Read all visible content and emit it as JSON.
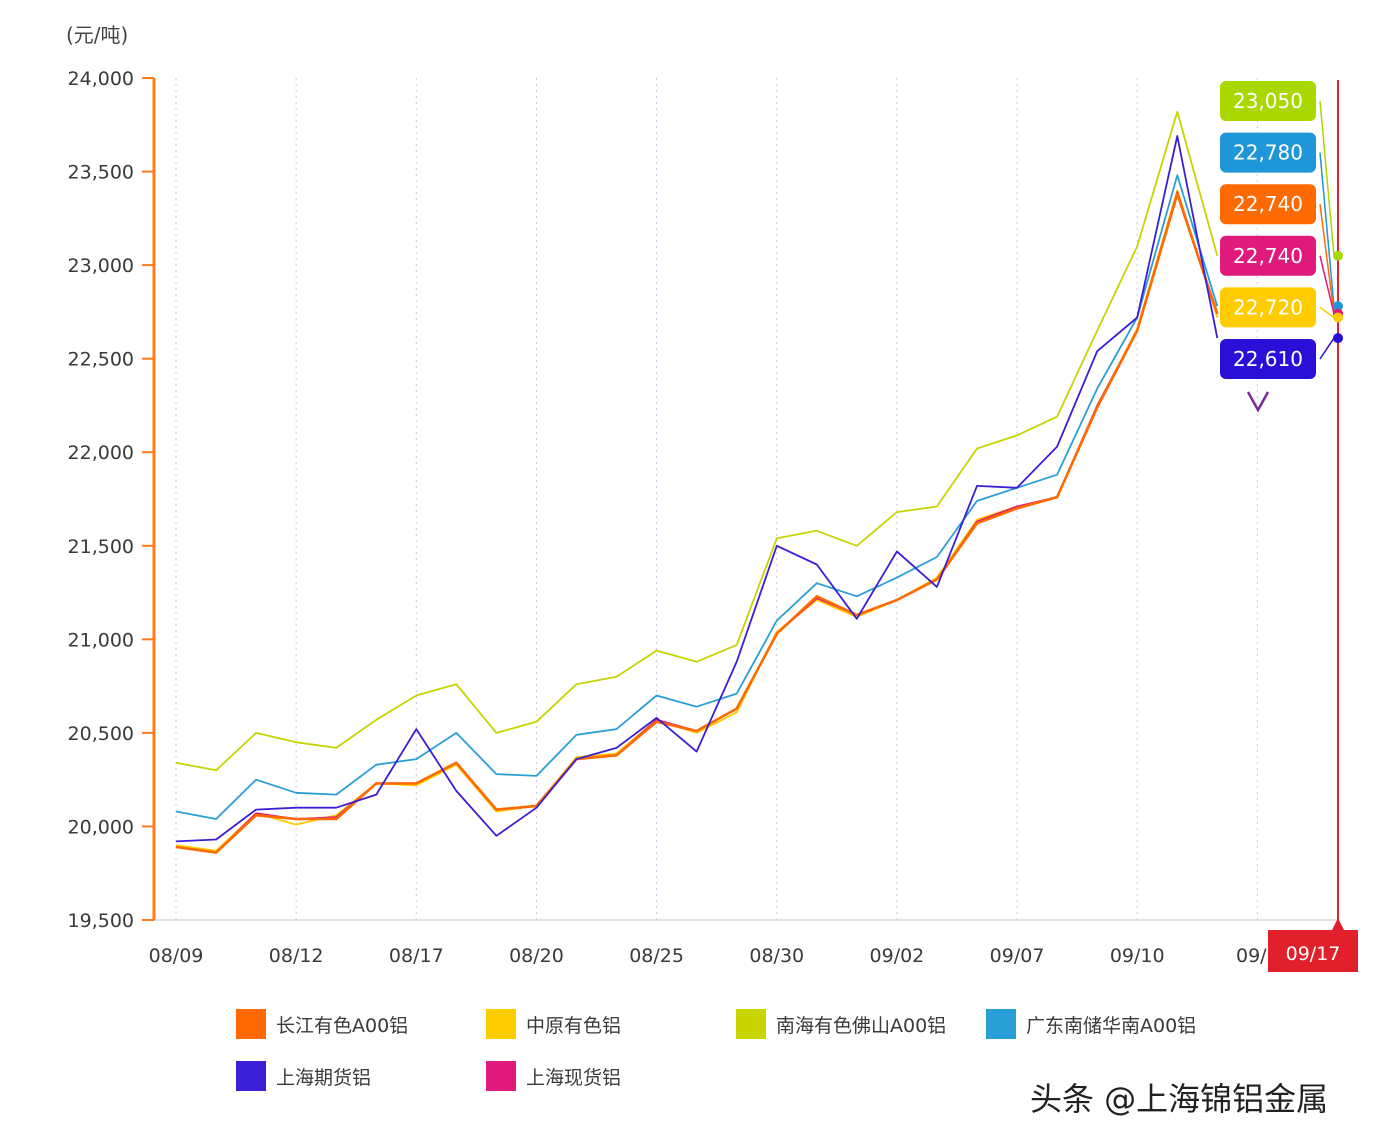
{
  "chart_data": {
    "type": "line",
    "unit_label": "(元/吨)",
    "ylim": [
      19500,
      24000
    ],
    "y_ticks": [
      "24,000",
      "23,500",
      "23,000",
      "22,500",
      "22,000",
      "21,500",
      "21,000",
      "20,500",
      "20,000",
      "19,500"
    ],
    "y_tick_values": [
      24000,
      23500,
      23000,
      22500,
      22000,
      21500,
      21000,
      20500,
      20000,
      19500
    ],
    "x_ticks": [
      "08/09",
      "08/12",
      "08/17",
      "08/20",
      "08/25",
      "08/30",
      "09/02",
      "09/07",
      "09/10",
      "09/1"
    ],
    "x_tick_indices": [
      0,
      3,
      6,
      9,
      12,
      15,
      18,
      21,
      24,
      27
    ],
    "n_points": 28,
    "cursor_label": "09/17",
    "grid": "vertical dotted",
    "legend_position": "bottom",
    "series": [
      {
        "name": "长江有色A00铝",
        "color": "#ff6a00",
        "values": [
          19890,
          19860,
          20060,
          20040,
          20040,
          20230,
          20230,
          20340,
          20090,
          20110,
          20360,
          20380,
          20560,
          20510,
          20630,
          21030,
          21230,
          21130,
          21210,
          21320,
          21620,
          21700,
          21760,
          22240,
          22650,
          23380,
          22740,
          null
        ]
      },
      {
        "name": "中原有色铝",
        "color": "#ffcc00",
        "values": [
          19900,
          19870,
          20070,
          20010,
          20060,
          20230,
          20220,
          20330,
          20080,
          20110,
          20370,
          20390,
          20570,
          20500,
          20610,
          21040,
          21210,
          21120,
          21210,
          21330,
          21640,
          21710,
          21760,
          22240,
          22660,
          23400,
          22720,
          null
        ]
      },
      {
        "name": "南海有色佛山A00铝",
        "color": "#c8d400",
        "values": [
          20340,
          20300,
          20500,
          20450,
          20420,
          20570,
          20700,
          20760,
          20500,
          20560,
          20760,
          20800,
          20940,
          20880,
          20970,
          21540,
          21580,
          21500,
          21680,
          21710,
          22020,
          22090,
          22190,
          22650,
          23100,
          23820,
          23050,
          null
        ]
      },
      {
        "name": "广东南储华南A00铝",
        "color": "#2a9fd6",
        "values": [
          20080,
          20040,
          20250,
          20180,
          20170,
          20330,
          20360,
          20500,
          20280,
          20270,
          20490,
          20520,
          20700,
          20640,
          20710,
          21100,
          21300,
          21230,
          21330,
          21440,
          21740,
          21810,
          21880,
          22340,
          22720,
          23480,
          22780,
          null
        ]
      },
      {
        "name": "上海期货铝",
        "color": "#3a1fd6",
        "values": [
          19920,
          19930,
          20090,
          20100,
          20100,
          20170,
          20520,
          20190,
          19950,
          20100,
          20360,
          20420,
          20580,
          20400,
          20880,
          21500,
          21400,
          21110,
          21470,
          21280,
          21820,
          21810,
          22030,
          22540,
          22720,
          23690,
          22610,
          null
        ]
      },
      {
        "name": "上海现货铝",
        "color": "#e0197d",
        "values": [
          19890,
          19860,
          20070,
          20040,
          20050,
          20230,
          20230,
          20340,
          20090,
          20110,
          20360,
          20380,
          20570,
          20510,
          20630,
          21030,
          21220,
          21130,
          21210,
          21320,
          21630,
          21710,
          21760,
          22250,
          22650,
          23390,
          22740,
          null
        ]
      }
    ],
    "tooltips": [
      {
        "value": "23,050",
        "color": "#a8d800"
      },
      {
        "value": "22,780",
        "color": "#1e96d8"
      },
      {
        "value": "22,740",
        "color": "#ff6a00"
      },
      {
        "value": "22,740",
        "color": "#e0197d"
      },
      {
        "value": "22,720",
        "color": "#ffcc00"
      },
      {
        "value": "22,610",
        "color": "#2a0fd6"
      }
    ]
  },
  "watermark": "头条 @上海锦铝金属"
}
